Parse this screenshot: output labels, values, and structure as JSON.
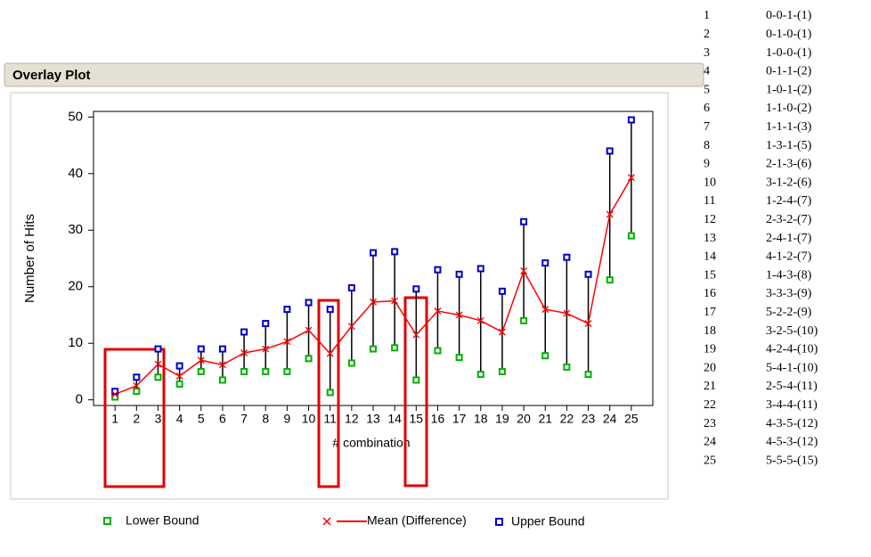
{
  "header": {
    "title": "Overlay Plot"
  },
  "chart_data": {
    "type": "line",
    "y_label": "Number of Hits",
    "x_label": "# combination",
    "x": [
      1,
      2,
      3,
      4,
      5,
      6,
      7,
      8,
      9,
      10,
      11,
      12,
      13,
      14,
      15,
      16,
      17,
      18,
      19,
      20,
      21,
      22,
      23,
      24,
      25
    ],
    "xlim": [
      0,
      26
    ],
    "xticks": [
      1,
      2,
      3,
      4,
      5,
      6,
      7,
      8,
      9,
      10,
      11,
      12,
      13,
      14,
      15,
      16,
      17,
      18,
      19,
      20,
      21,
      22,
      23,
      24,
      25
    ],
    "ylim": [
      -1,
      51
    ],
    "yticks": [
      0,
      10,
      20,
      30,
      40,
      50
    ],
    "series": [
      {
        "name": "Lower Bound",
        "color": "#00b000",
        "values": [
          0.5,
          1.5,
          4,
          2.8,
          5,
          3.5,
          5,
          5,
          5,
          7.3,
          1.3,
          6.5,
          9,
          9.2,
          3.5,
          8.7,
          7.5,
          4.5,
          5,
          14,
          7.8,
          5.8,
          4.5,
          21.2,
          29
        ]
      },
      {
        "name": "Mean (Difference)",
        "color": "#ff0000",
        "values": [
          1,
          2.5,
          6.3,
          4.2,
          7,
          6.2,
          8.3,
          9,
          10.3,
          12.3,
          8.2,
          13,
          17.3,
          17.5,
          11.5,
          15.7,
          15,
          14,
          12,
          22.8,
          16,
          15.3,
          13.5,
          32.8,
          39.3
        ]
      },
      {
        "name": "Upper Bound",
        "color": "#0000cc",
        "values": [
          1.5,
          4,
          9,
          6,
          9,
          9,
          12,
          13.5,
          16,
          17.2,
          16,
          19.8,
          26,
          26.2,
          19.6,
          23,
          22.2,
          23.2,
          19.2,
          31.5,
          24.2,
          25.2,
          22.2,
          44,
          49.5
        ]
      }
    ]
  },
  "table": {
    "rows": [
      [
        1,
        "0-0-1-(1)"
      ],
      [
        2,
        "0-1-0-(1)"
      ],
      [
        3,
        "1-0-0-(1)"
      ],
      [
        4,
        "0-1-1-(2)"
      ],
      [
        5,
        "1-0-1-(2)"
      ],
      [
        6,
        "1-1-0-(2)"
      ],
      [
        7,
        "1-1-1-(3)"
      ],
      [
        8,
        "1-3-1-(5)"
      ],
      [
        9,
        "2-1-3-(6)"
      ],
      [
        10,
        "3-1-2-(6)"
      ],
      [
        11,
        "1-2-4-(7)"
      ],
      [
        12,
        "2-3-2-(7)"
      ],
      [
        13,
        "2-4-1-(7)"
      ],
      [
        14,
        "4-1-2-(7)"
      ],
      [
        15,
        "1-4-3-(8)"
      ],
      [
        16,
        "3-3-3-(9)"
      ],
      [
        17,
        "5-2-2-(9)"
      ],
      [
        18,
        "3-2-5-(10)"
      ],
      [
        19,
        "4-2-4-(10)"
      ],
      [
        20,
        "5-4-1-(10)"
      ],
      [
        21,
        "2-5-4-(11)"
      ],
      [
        22,
        "3-4-4-(11)"
      ],
      [
        23,
        "4-3-5-(12)"
      ],
      [
        24,
        "4-5-3-(12)"
      ],
      [
        25,
        "5-5-5-(15)"
      ]
    ]
  }
}
